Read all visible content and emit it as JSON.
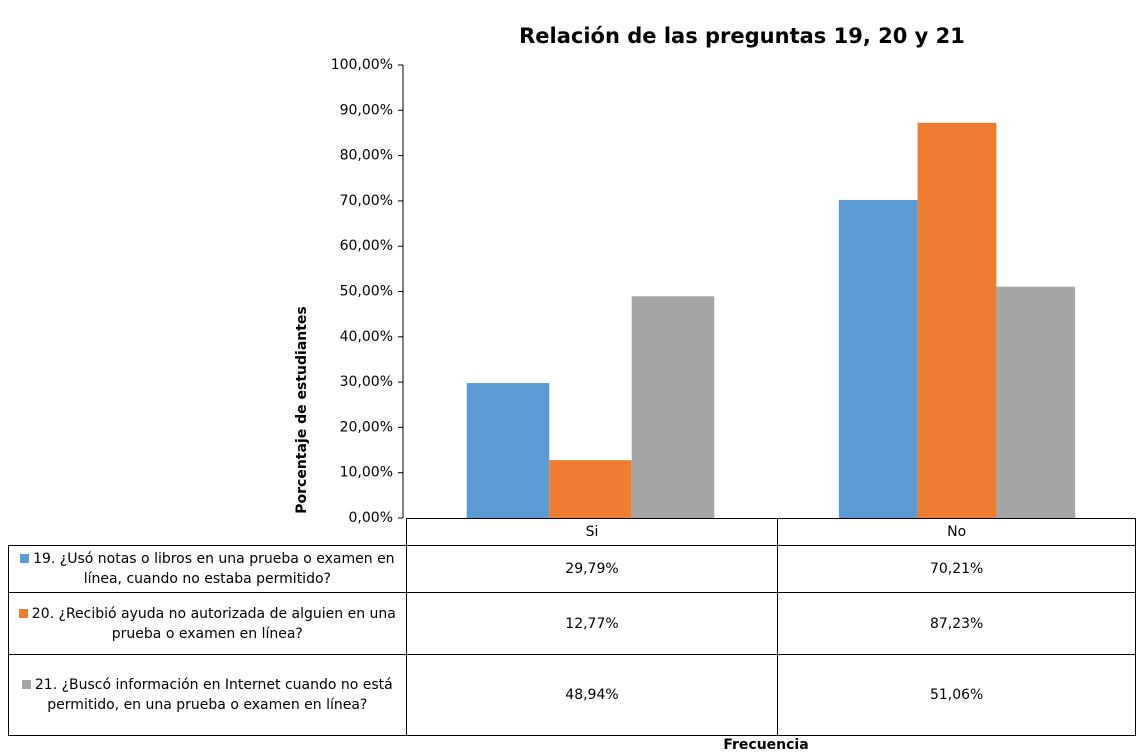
{
  "chart_data": {
    "type": "bar",
    "title": "Relación de las preguntas 19, 20 y 21",
    "y_label": "Porcentaje de estudiantes",
    "x_label": "Frecuencia",
    "categories": [
      "Si",
      "No"
    ],
    "series": [
      {
        "name": "19. ¿Usó notas o libros en una prueba o examen en línea, cuando no estaba permitido?",
        "color": "#5b9bd5",
        "values": [
          29.79,
          70.21
        ],
        "value_labels": [
          "29,79%",
          "70,21%"
        ]
      },
      {
        "name": "20. ¿Recibió ayuda no autorizada de alguien en una prueba o examen en línea?",
        "color": "#ed7d31",
        "values": [
          12.77,
          87.23
        ],
        "value_labels": [
          "12,77%",
          "87,23%"
        ]
      },
      {
        "name": "21. ¿Buscó información en Internet cuando no está permitido, en una prueba o examen en línea?",
        "color": "#a5a5a5",
        "values": [
          48.94,
          51.06
        ],
        "value_labels": [
          "48,94%",
          "51,06%"
        ]
      }
    ],
    "ylim": [
      0,
      100
    ],
    "yticks": [
      {
        "value": 0,
        "label": "0,00%"
      },
      {
        "value": 10,
        "label": "10,00%"
      },
      {
        "value": 20,
        "label": "20,00%"
      },
      {
        "value": 30,
        "label": "30,00%"
      },
      {
        "value": 40,
        "label": "40,00%"
      },
      {
        "value": 50,
        "label": "50,00%"
      },
      {
        "value": 60,
        "label": "60,00%"
      },
      {
        "value": 70,
        "label": "70,00%"
      },
      {
        "value": 80,
        "label": "80,00%"
      },
      {
        "value": 90,
        "label": "90,00%"
      },
      {
        "value": 100,
        "label": "100,00%"
      }
    ],
    "data_table": true
  }
}
